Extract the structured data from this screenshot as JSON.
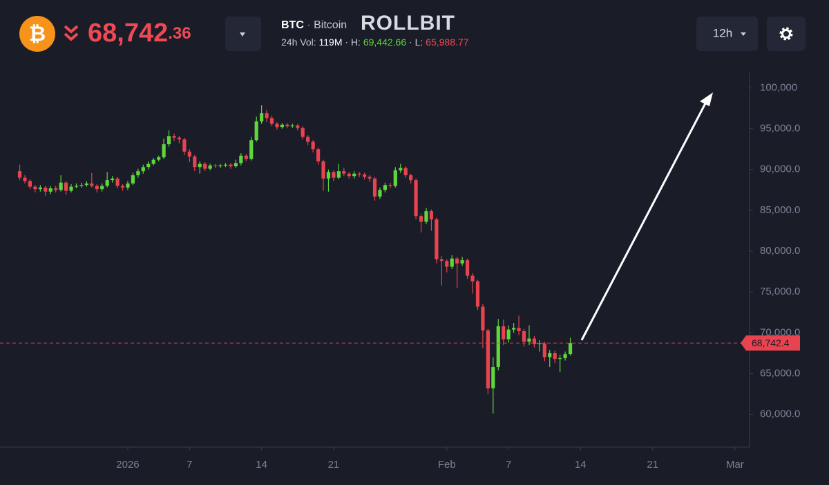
{
  "header": {
    "coin_symbol": "₿",
    "price_main": "68,742",
    "price_decimals": ".36",
    "ticker": "BTC",
    "separator": "·",
    "coin_name": "Bitcoin",
    "brand": "ROLLBIT",
    "vol_label": "24h Vol:",
    "vol_value": "119M",
    "high_label": "H:",
    "high_value": "69,442.66",
    "low_label": "L:",
    "low_value": "65,988.77",
    "interval": "12h"
  },
  "chart_data": {
    "type": "candlestick",
    "up_color": "#5fd63c",
    "down_color": "#e8434f",
    "xlim": [
      "2025-12-19T14:00",
      "2026-03-02T10:00"
    ],
    "ylim": [
      56000,
      101900
    ],
    "xticks": [
      {
        "value": "2026-01-01T00:00",
        "label": "2026"
      },
      {
        "value": "2026-01-07T00:00",
        "label": "7"
      },
      {
        "value": "2026-01-14T00:00",
        "label": "14"
      },
      {
        "value": "2026-01-21T00:00",
        "label": "21"
      },
      {
        "value": "2026-02-01T00:00",
        "label": "Feb"
      },
      {
        "value": "2026-02-07T00:00",
        "label": "7"
      },
      {
        "value": "2026-02-14T00:00",
        "label": "14"
      },
      {
        "value": "2026-02-21T00:00",
        "label": "21"
      },
      {
        "value": "2026-03-01T00:00",
        "label": "Mar"
      }
    ],
    "yticks": [
      {
        "value": 60000,
        "label": "60,000.0"
      },
      {
        "value": 65000,
        "label": "65,000.0"
      },
      {
        "value": 70000,
        "label": "70,000.0"
      },
      {
        "value": 75000,
        "label": "75,000.0"
      },
      {
        "value": 80000,
        "label": "80,000.0"
      },
      {
        "value": 85000,
        "label": "85,000.0"
      },
      {
        "value": 90000,
        "label": "90,000.0"
      },
      {
        "value": 95000,
        "label": "95,000.0"
      },
      {
        "value": 100000,
        "label": "100,000"
      }
    ],
    "last_price": {
      "value": 68742.4,
      "label": "68,742.4"
    },
    "open": [
      89800,
      89000,
      88600,
      87900,
      87600,
      87800,
      87300,
      87700,
      87500,
      88400,
      87400,
      87900,
      88000,
      88100,
      88300,
      88000,
      87600,
      88000,
      88700,
      88900,
      88000,
      87800,
      88300,
      89300,
      89800,
      90300,
      90700,
      91200,
      91500,
      93100,
      94100,
      93900,
      93700,
      92200,
      91600,
      90300,
      90700,
      90100,
      90500,
      90400,
      90500,
      90600,
      90400,
      90800,
      91700,
      91300,
      93600,
      95900,
      96900,
      96300,
      95600,
      95200,
      95500,
      95300,
      95400,
      95100,
      94000,
      93400,
      92500,
      91000,
      88900,
      89700,
      89000,
      89800,
      89500,
      89200,
      89500,
      89400,
      89100,
      88900,
      86700,
      87500,
      88100,
      88000,
      89900,
      90200,
      89300,
      88700,
      84300,
      83600,
      84900,
      83900,
      79000,
      78800,
      78100,
      79100,
      78500,
      78900,
      77000,
      76300,
      73200,
      70300,
      63200,
      65800,
      70800,
      69200,
      70400,
      70600,
      70200,
      68900,
      69300,
      68600,
      68700,
      67000,
      67500,
      66800,
      66900,
      67400
    ],
    "high": [
      90600,
      89300,
      88800,
      88100,
      88100,
      88000,
      88000,
      88000,
      89300,
      88600,
      88200,
      88300,
      88400,
      88600,
      89600,
      88200,
      88300,
      89700,
      89200,
      89100,
      88200,
      88600,
      89600,
      90100,
      90600,
      91000,
      91400,
      91700,
      93800,
      94800,
      94400,
      94100,
      93900,
      92500,
      91800,
      91000,
      90900,
      90700,
      90700,
      90700,
      90800,
      90800,
      91200,
      92000,
      91900,
      94000,
      96500,
      97900,
      97300,
      96600,
      95800,
      95700,
      95700,
      95600,
      95600,
      95300,
      94200,
      93600,
      92700,
      91200,
      90000,
      89900,
      90700,
      90200,
      89700,
      89800,
      89700,
      89600,
      89300,
      89100,
      87800,
      88400,
      88400,
      90300,
      90700,
      90400,
      89500,
      88900,
      84600,
      85300,
      85100,
      84100,
      79400,
      79000,
      79500,
      79300,
      79300,
      79100,
      77300,
      76500,
      73500,
      70500,
      67000,
      71700,
      71600,
      70900,
      71200,
      72100,
      70500,
      70900,
      69600,
      69100,
      68900,
      67900,
      67800,
      67300,
      67700,
      69400
    ],
    "low": [
      88700,
      88300,
      87600,
      87200,
      87300,
      86800,
      87000,
      87200,
      87300,
      86900,
      87200,
      87700,
      87800,
      87900,
      87800,
      87200,
      87300,
      87800,
      88400,
      87700,
      87400,
      87500,
      88100,
      89000,
      89500,
      90000,
      90500,
      91000,
      91300,
      92800,
      93500,
      93200,
      91800,
      90900,
      89800,
      89500,
      89800,
      89900,
      90200,
      90200,
      90300,
      90100,
      90200,
      90500,
      91000,
      91100,
      93400,
      95600,
      95800,
      95300,
      94900,
      95000,
      95100,
      95100,
      94800,
      93700,
      93000,
      92100,
      90600,
      87400,
      87300,
      88600,
      88800,
      89200,
      88900,
      88900,
      89100,
      88800,
      88500,
      86200,
      86400,
      87200,
      87700,
      87800,
      89600,
      89000,
      88300,
      83900,
      82300,
      83300,
      82500,
      78500,
      75800,
      77400,
      77800,
      75500,
      78200,
      76600,
      74800,
      72800,
      68100,
      62500,
      60100,
      65400,
      68500,
      68800,
      70000,
      69700,
      68300,
      68500,
      68200,
      67700,
      66500,
      65800,
      66300,
      65200,
      66600,
      67200
    ],
    "close": [
      89000,
      88600,
      87900,
      87600,
      87800,
      87300,
      87700,
      87500,
      88400,
      87400,
      87900,
      88000,
      88100,
      88300,
      88000,
      87600,
      88000,
      88700,
      88900,
      88000,
      87800,
      88300,
      89300,
      89800,
      90300,
      90700,
      91200,
      91500,
      93100,
      94100,
      93900,
      93700,
      92200,
      91600,
      90300,
      90700,
      90100,
      90500,
      90400,
      90500,
      90600,
      90400,
      90800,
      91700,
      91300,
      93600,
      95900,
      96900,
      96300,
      95600,
      95200,
      95500,
      95300,
      95400,
      95100,
      94000,
      93400,
      92500,
      91000,
      88900,
      89700,
      89000,
      89800,
      89500,
      89200,
      89500,
      89400,
      89100,
      88900,
      86700,
      87500,
      88100,
      88000,
      89900,
      90200,
      89300,
      88700,
      84300,
      83600,
      84900,
      83900,
      79000,
      78800,
      78100,
      79100,
      78500,
      78900,
      77000,
      76300,
      73200,
      70300,
      63200,
      65800,
      70800,
      69200,
      70400,
      70600,
      70200,
      68900,
      69300,
      68600,
      68700,
      67000,
      67500,
      66800,
      66900,
      67400,
      68742.4
    ],
    "x": [
      "2025-12-21T12:00",
      "2025-12-22T00:00",
      "2025-12-22T12:00",
      "2025-12-23T00:00",
      "2025-12-23T12:00",
      "2025-12-24T00:00",
      "2025-12-24T12:00",
      "2025-12-25T00:00",
      "2025-12-25T12:00",
      "2025-12-26T00:00",
      "2025-12-26T12:00",
      "2025-12-27T00:00",
      "2025-12-27T12:00",
      "2025-12-28T00:00",
      "2025-12-28T12:00",
      "2025-12-29T00:00",
      "2025-12-29T12:00",
      "2025-12-30T00:00",
      "2025-12-30T12:00",
      "2025-12-31T00:00",
      "2025-12-31T12:00",
      "2026-01-01T00:00",
      "2026-01-01T12:00",
      "2026-01-02T00:00",
      "2026-01-02T12:00",
      "2026-01-03T00:00",
      "2026-01-03T12:00",
      "2026-01-04T00:00",
      "2026-01-04T12:00",
      "2026-01-05T00:00",
      "2026-01-05T12:00",
      "2026-01-06T00:00",
      "2026-01-06T12:00",
      "2026-01-07T00:00",
      "2026-01-07T12:00",
      "2026-01-08T00:00",
      "2026-01-08T12:00",
      "2026-01-09T00:00",
      "2026-01-09T12:00",
      "2026-01-10T00:00",
      "2026-01-10T12:00",
      "2026-01-11T00:00",
      "2026-01-11T12:00",
      "2026-01-12T00:00",
      "2026-01-12T12:00",
      "2026-01-13T00:00",
      "2026-01-13T12:00",
      "2026-01-14T00:00",
      "2026-01-14T12:00",
      "2026-01-15T00:00",
      "2026-01-15T12:00",
      "2026-01-16T00:00",
      "2026-01-16T12:00",
      "2026-01-17T00:00",
      "2026-01-17T12:00",
      "2026-01-18T00:00",
      "2026-01-18T12:00",
      "2026-01-19T00:00",
      "2026-01-19T12:00",
      "2026-01-20T00:00",
      "2026-01-20T12:00",
      "2026-01-21T00:00",
      "2026-01-21T12:00",
      "2026-01-22T00:00",
      "2026-01-22T12:00",
      "2026-01-23T00:00",
      "2026-01-23T12:00",
      "2026-01-24T00:00",
      "2026-01-24T12:00",
      "2026-01-25T00:00",
      "2026-01-25T12:00",
      "2026-01-26T00:00",
      "2026-01-26T12:00",
      "2026-01-27T00:00",
      "2026-01-27T12:00",
      "2026-01-28T00:00",
      "2026-01-28T12:00",
      "2026-01-29T00:00",
      "2026-01-29T12:00",
      "2026-01-30T00:00",
      "2026-01-30T12:00",
      "2026-01-31T00:00",
      "2026-01-31T12:00",
      "2026-02-01T00:00",
      "2026-02-01T12:00",
      "2026-02-02T00:00",
      "2026-02-02T12:00",
      "2026-02-03T00:00",
      "2026-02-03T12:00",
      "2026-02-04T00:00",
      "2026-02-04T12:00",
      "2026-02-05T00:00",
      "2026-02-05T12:00",
      "2026-02-06T00:00",
      "2026-02-06T12:00",
      "2026-02-07T00:00",
      "2026-02-07T12:00",
      "2026-02-08T00:00",
      "2026-02-08T12:00",
      "2026-02-09T00:00",
      "2026-02-09T12:00",
      "2026-02-10T00:00",
      "2026-02-10T12:00",
      "2026-02-11T00:00",
      "2026-02-11T12:00",
      "2026-02-12T00:00",
      "2026-02-12T12:00",
      "2026-02-13T00:00"
    ]
  }
}
